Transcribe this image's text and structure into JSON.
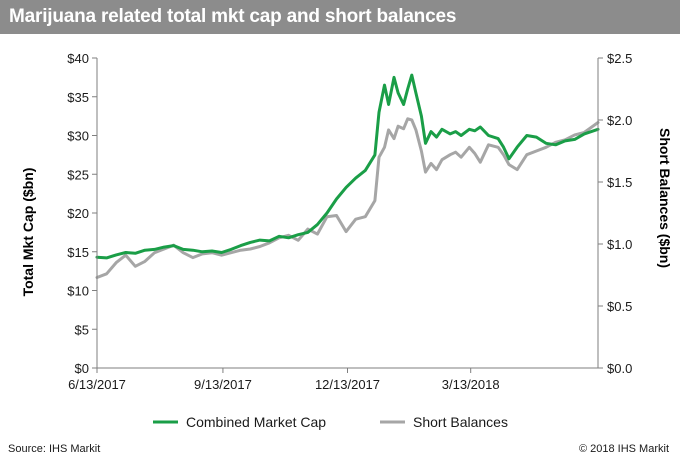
{
  "title": "Marijuana related total mkt cap and short balances",
  "footer": {
    "source": "Source: IHS Markit",
    "copyright": "© 2018 IHS Markit"
  },
  "colors": {
    "title_bar": "#8c8c8c",
    "market_cap": "#1a9e47",
    "short_balances": "#a6a6a6",
    "axis": "#7f7f7f"
  },
  "chart_data": {
    "type": "line",
    "title": "Marijuana related total mkt cap and short balances",
    "xlabel": "",
    "ylabel": "Total Mkt Cap ($bn)",
    "y2label": "Short Balances ($bn)",
    "ylim": [
      0,
      40
    ],
    "y2lim": [
      0,
      2.5
    ],
    "grid": false,
    "legend_position": "bottom",
    "x_tick_labels": [
      "6/13/2017",
      "9/13/2017",
      "12/13/2017",
      "3/13/2018"
    ],
    "x_ticks": [
      "2017-06-13",
      "2017-09-13",
      "2017-12-13",
      "2018-03-13"
    ],
    "x_range": [
      "2017-06-13",
      "2018-06-14"
    ],
    "y_tick_labels": [
      "$0",
      "$5",
      "$10",
      "$15",
      "$20",
      "$25",
      "$30",
      "$35",
      "$40"
    ],
    "y_ticks": [
      0,
      5,
      10,
      15,
      20,
      25,
      30,
      35,
      40
    ],
    "y2_tick_labels": [
      "$0.0",
      "$0.5",
      "$1.0",
      "$1.5",
      "$2.0",
      "$2.5"
    ],
    "y2_ticks": [
      0,
      0.5,
      1.0,
      1.5,
      2.0,
      2.5
    ],
    "series": [
      {
        "name": "Combined Market Cap",
        "axis": "left",
        "points": [
          [
            "2017-06-13",
            14.3
          ],
          [
            "2017-06-20",
            14.2
          ],
          [
            "2017-06-27",
            14.6
          ],
          [
            "2017-07-04",
            14.9
          ],
          [
            "2017-07-11",
            14.8
          ],
          [
            "2017-07-18",
            15.2
          ],
          [
            "2017-07-25",
            15.3
          ],
          [
            "2017-08-01",
            15.6
          ],
          [
            "2017-08-08",
            15.8
          ],
          [
            "2017-08-15",
            15.3
          ],
          [
            "2017-08-22",
            15.2
          ],
          [
            "2017-08-29",
            15.0
          ],
          [
            "2017-09-05",
            15.1
          ],
          [
            "2017-09-12",
            14.9
          ],
          [
            "2017-09-19",
            15.3
          ],
          [
            "2017-09-26",
            15.8
          ],
          [
            "2017-10-03",
            16.2
          ],
          [
            "2017-10-10",
            16.5
          ],
          [
            "2017-10-17",
            16.4
          ],
          [
            "2017-10-24",
            17.0
          ],
          [
            "2017-10-31",
            16.8
          ],
          [
            "2017-11-07",
            17.2
          ],
          [
            "2017-11-14",
            17.5
          ],
          [
            "2017-11-21",
            18.5
          ],
          [
            "2017-11-28",
            20.0
          ],
          [
            "2017-12-05",
            21.8
          ],
          [
            "2017-12-12",
            23.3
          ],
          [
            "2017-12-19",
            24.5
          ],
          [
            "2017-12-26",
            25.5
          ],
          [
            "2018-01-02",
            27.5
          ],
          [
            "2018-01-05",
            33.0
          ],
          [
            "2018-01-09",
            36.5
          ],
          [
            "2018-01-12",
            34.0
          ],
          [
            "2018-01-16",
            37.5
          ],
          [
            "2018-01-19",
            35.5
          ],
          [
            "2018-01-23",
            34.0
          ],
          [
            "2018-01-26",
            36.0
          ],
          [
            "2018-01-29",
            37.8
          ],
          [
            "2018-02-01",
            35.5
          ],
          [
            "2018-02-05",
            32.5
          ],
          [
            "2018-02-08",
            29.0
          ],
          [
            "2018-02-12",
            30.5
          ],
          [
            "2018-02-16",
            29.8
          ],
          [
            "2018-02-20",
            30.8
          ],
          [
            "2018-02-26",
            30.2
          ],
          [
            "2018-03-02",
            30.5
          ],
          [
            "2018-03-06",
            30.0
          ],
          [
            "2018-03-12",
            30.8
          ],
          [
            "2018-03-16",
            30.6
          ],
          [
            "2018-03-20",
            31.1
          ],
          [
            "2018-03-26",
            30.0
          ],
          [
            "2018-04-02",
            29.6
          ],
          [
            "2018-04-06",
            28.5
          ],
          [
            "2018-04-10",
            27.0
          ],
          [
            "2018-04-16",
            28.5
          ],
          [
            "2018-04-23",
            30.0
          ],
          [
            "2018-04-30",
            29.8
          ],
          [
            "2018-05-07",
            29.0
          ],
          [
            "2018-05-14",
            28.8
          ],
          [
            "2018-05-21",
            29.3
          ],
          [
            "2018-05-28",
            29.5
          ],
          [
            "2018-06-04",
            30.2
          ],
          [
            "2018-06-14",
            30.8
          ]
        ]
      },
      {
        "name": "Short Balances",
        "axis": "right",
        "points": [
          [
            "2017-06-13",
            0.73
          ],
          [
            "2017-06-20",
            0.76
          ],
          [
            "2017-06-27",
            0.85
          ],
          [
            "2017-07-04",
            0.91
          ],
          [
            "2017-07-11",
            0.82
          ],
          [
            "2017-07-18",
            0.86
          ],
          [
            "2017-07-25",
            0.93
          ],
          [
            "2017-08-01",
            0.96
          ],
          [
            "2017-08-08",
            0.99
          ],
          [
            "2017-08-15",
            0.93
          ],
          [
            "2017-08-22",
            0.89
          ],
          [
            "2017-08-29",
            0.92
          ],
          [
            "2017-09-05",
            0.93
          ],
          [
            "2017-09-12",
            0.91
          ],
          [
            "2017-09-19",
            0.93
          ],
          [
            "2017-09-26",
            0.95
          ],
          [
            "2017-10-03",
            0.96
          ],
          [
            "2017-10-10",
            0.98
          ],
          [
            "2017-10-17",
            1.01
          ],
          [
            "2017-10-24",
            1.05
          ],
          [
            "2017-10-31",
            1.07
          ],
          [
            "2017-11-07",
            1.03
          ],
          [
            "2017-11-14",
            1.12
          ],
          [
            "2017-11-21",
            1.08
          ],
          [
            "2017-11-28",
            1.22
          ],
          [
            "2017-12-05",
            1.23
          ],
          [
            "2017-12-12",
            1.1
          ],
          [
            "2017-12-19",
            1.2
          ],
          [
            "2017-12-26",
            1.22
          ],
          [
            "2018-01-02",
            1.35
          ],
          [
            "2018-01-05",
            1.7
          ],
          [
            "2018-01-09",
            1.78
          ],
          [
            "2018-01-12",
            1.92
          ],
          [
            "2018-01-16",
            1.85
          ],
          [
            "2018-01-19",
            1.95
          ],
          [
            "2018-01-23",
            1.93
          ],
          [
            "2018-01-26",
            2.01
          ],
          [
            "2018-01-29",
            2.0
          ],
          [
            "2018-02-01",
            1.92
          ],
          [
            "2018-02-05",
            1.75
          ],
          [
            "2018-02-08",
            1.58
          ],
          [
            "2018-02-12",
            1.65
          ],
          [
            "2018-02-16",
            1.6
          ],
          [
            "2018-02-20",
            1.68
          ],
          [
            "2018-02-26",
            1.72
          ],
          [
            "2018-03-02",
            1.74
          ],
          [
            "2018-03-06",
            1.7
          ],
          [
            "2018-03-12",
            1.78
          ],
          [
            "2018-03-16",
            1.73
          ],
          [
            "2018-03-20",
            1.66
          ],
          [
            "2018-03-26",
            1.8
          ],
          [
            "2018-04-02",
            1.78
          ],
          [
            "2018-04-06",
            1.72
          ],
          [
            "2018-04-10",
            1.64
          ],
          [
            "2018-04-16",
            1.6
          ],
          [
            "2018-04-23",
            1.72
          ],
          [
            "2018-04-30",
            1.75
          ],
          [
            "2018-05-07",
            1.78
          ],
          [
            "2018-05-14",
            1.82
          ],
          [
            "2018-05-21",
            1.84
          ],
          [
            "2018-05-28",
            1.88
          ],
          [
            "2018-06-04",
            1.9
          ],
          [
            "2018-06-14",
            1.98
          ]
        ]
      }
    ]
  }
}
